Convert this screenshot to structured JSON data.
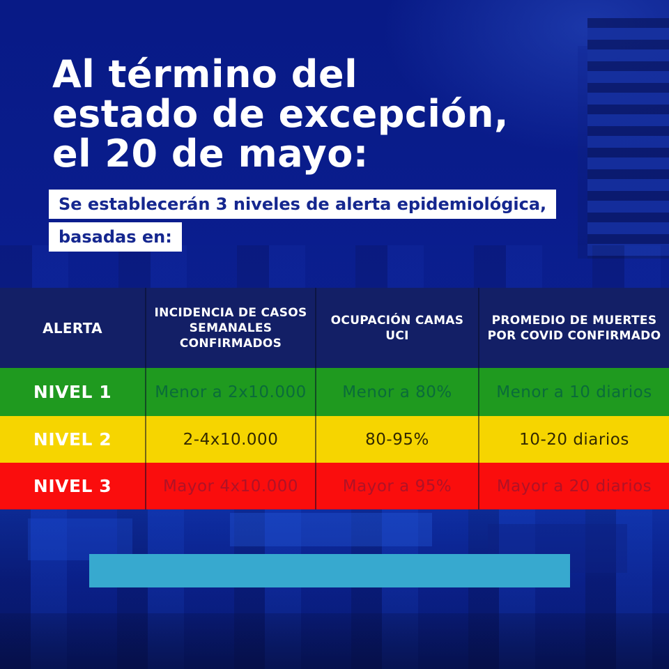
{
  "poster": {
    "heading_line1": "Al término del",
    "heading_line2": "estado de excepción,",
    "heading_line3": "el 20 de mayo:",
    "subtitle_line1": "Se establecerán 3 niveles de alerta epidemiológica,",
    "subtitle_line2": "basadas en:"
  },
  "table": {
    "header_bg": "#131f66",
    "columns": [
      "ALERTA",
      "INCIDENCIA DE CASOS SEMANALES CONFIRMADOS",
      "OCUPACIÓN CAMAS UCI",
      "PROMEDIO DE MUERTES POR COVID CONFIRMADO"
    ],
    "rows": [
      {
        "level": "NIVEL 1",
        "incidence": "Menor a 2x10.000",
        "icu": "Menor a 80%",
        "deaths": "Menor a 10 diarios",
        "bg_color": "#1f9a1f",
        "text_color": "#0a6b3a"
      },
      {
        "level": "NIVEL 2",
        "incidence": "2-4x10.000",
        "icu": "80-95%",
        "deaths": "10-20 diarios",
        "bg_color": "#f6d500",
        "text_color": "#332900"
      },
      {
        "level": "NIVEL 3",
        "incidence": "Mayor 4x10.000",
        "icu": "Mayor a 95%",
        "deaths": "Mayor a 20 diarios",
        "bg_color": "#fa0d0d",
        "text_color": "#b01226"
      }
    ]
  },
  "colors": {
    "background_blue": "#0a1d8e",
    "header_navy": "#131f66",
    "accent_bar_cyan": "#37a9cf",
    "subtitle_text_navy": "#15278f",
    "level1_green": "#1f9a1f",
    "level2_yellow": "#f6d500",
    "level3_red": "#fa0d0d"
  }
}
